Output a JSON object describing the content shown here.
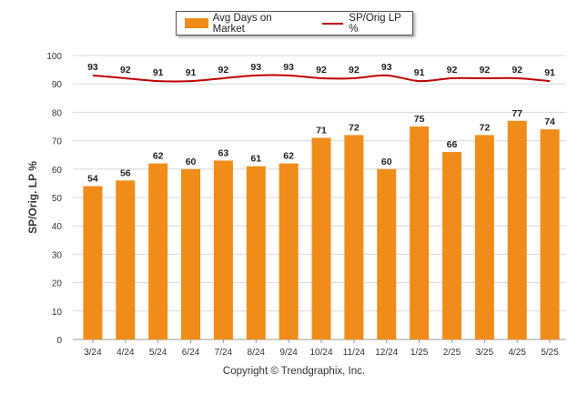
{
  "chart_data": {
    "type": "bar",
    "categories": [
      "3/24",
      "4/24",
      "5/24",
      "6/24",
      "7/24",
      "8/24",
      "9/24",
      "10/24",
      "11/24",
      "12/24",
      "1/25",
      "2/25",
      "3/25",
      "4/25",
      "5/25"
    ],
    "series": [
      {
        "name": "Avg Days on Market",
        "type": "bar",
        "color": "#f08c1a",
        "values": [
          54,
          56,
          62,
          60,
          63,
          61,
          62,
          71,
          72,
          60,
          75,
          66,
          72,
          77,
          74
        ]
      },
      {
        "name": "SP/Orig LP %",
        "type": "line",
        "color": "#c00000",
        "values": [
          93,
          92,
          91,
          91,
          92,
          93,
          93,
          92,
          92,
          93,
          91,
          92,
          92,
          92,
          91
        ]
      }
    ],
    "ylabel": "SP/Orig. LP %",
    "ylim": [
      0,
      100
    ],
    "yticks": [
      0,
      10,
      20,
      30,
      40,
      50,
      60,
      70,
      80,
      90,
      100
    ],
    "grid": true,
    "legend_position": "top-center"
  },
  "footer": {
    "copyright": "Copyright © Trendgraphix, Inc."
  }
}
